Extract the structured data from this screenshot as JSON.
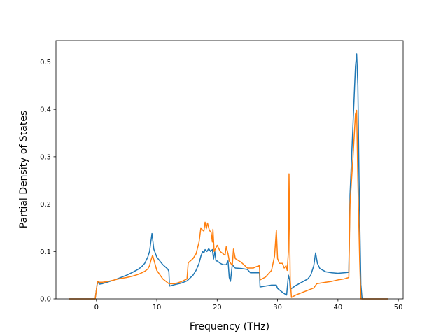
{
  "chart_data": {
    "type": "line",
    "title": "",
    "xlabel": "Frequency (THz)",
    "ylabel": "Partial Density of States",
    "xlim": [
      -6.7,
      50.8
    ],
    "ylim": [
      0.0,
      0.545
    ],
    "xticks": [
      0,
      10,
      20,
      30,
      40,
      50
    ],
    "yticks": [
      0.0,
      0.1,
      0.2,
      0.3,
      0.4,
      0.5
    ],
    "xtick_labels": [
      "0",
      "10",
      "20",
      "30",
      "40",
      "50"
    ],
    "ytick_labels": [
      "0.0",
      "0.1",
      "0.2",
      "0.3",
      "0.4",
      "0.5"
    ],
    "grid": false,
    "legend": null,
    "series": [
      {
        "color": "#1f77b4",
        "x": [
          -4.5,
          -0.2,
          0.1,
          0.3,
          0.5,
          1,
          2,
          3,
          4,
          5,
          6,
          7,
          7.5,
          8,
          8.5,
          8.8,
          9.0,
          9.2,
          9.5,
          10,
          11,
          11.8,
          12.0,
          12.1,
          13,
          14,
          15,
          16,
          16.5,
          17,
          17.3,
          17.6,
          17.8,
          18,
          18.3,
          18.6,
          18.9,
          19.2,
          19.4,
          19.6,
          19.8,
          20.0,
          20.5,
          21,
          21.5,
          21.8,
          22.0,
          22.2,
          22.5,
          23,
          24,
          25,
          25.5,
          26,
          26.5,
          27.0,
          27.1,
          28,
          29,
          29.8,
          30.0,
          31.0,
          31.5,
          31.8,
          32.0,
          32.1,
          33,
          34,
          35,
          35.5,
          36.0,
          36.3,
          36.6,
          37,
          38,
          39,
          40,
          41,
          41.8,
          42.0,
          42.5,
          42.9,
          43.1,
          43.3,
          43.5,
          43.8,
          44.0,
          44.5,
          48.3
        ],
        "y": [
          0.0,
          0.0,
          0.03,
          0.035,
          0.031,
          0.032,
          0.036,
          0.04,
          0.045,
          0.05,
          0.056,
          0.063,
          0.068,
          0.075,
          0.088,
          0.1,
          0.119,
          0.138,
          0.105,
          0.088,
          0.072,
          0.063,
          0.058,
          0.027,
          0.03,
          0.033,
          0.038,
          0.05,
          0.06,
          0.075,
          0.09,
          0.1,
          0.097,
          0.104,
          0.1,
          0.106,
          0.1,
          0.104,
          0.084,
          0.1,
          0.08,
          0.08,
          0.075,
          0.072,
          0.072,
          0.08,
          0.045,
          0.037,
          0.072,
          0.065,
          0.064,
          0.062,
          0.055,
          0.055,
          0.055,
          0.055,
          0.025,
          0.027,
          0.029,
          0.029,
          0.022,
          0.012,
          0.008,
          0.05,
          0.04,
          0.02,
          0.028,
          0.035,
          0.042,
          0.05,
          0.07,
          0.097,
          0.075,
          0.064,
          0.057,
          0.055,
          0.054,
          0.055,
          0.056,
          0.22,
          0.37,
          0.49,
          0.517,
          0.45,
          0.25,
          0.03,
          0.0,
          0.0,
          0.0
        ]
      },
      {
        "color": "#ff7f0e",
        "x": [
          -4.5,
          -0.2,
          0.0,
          0.2,
          0.5,
          1,
          2,
          3,
          4,
          5,
          6,
          7,
          7.5,
          8,
          8.5,
          8.8,
          9.0,
          9.3,
          10,
          11,
          12.0,
          13,
          14,
          15,
          15.2,
          16,
          16.5,
          17,
          17.3,
          17.6,
          17.8,
          18,
          18.2,
          18.4,
          18.7,
          19.0,
          19.2,
          19.3,
          19.5,
          20,
          20.5,
          21,
          21.3,
          21.5,
          21.8,
          22.0,
          22.5,
          22.7,
          23,
          24,
          25,
          26,
          26.5,
          27.0,
          27.1,
          28,
          29,
          29.5,
          29.8,
          30.0,
          30.3,
          30.8,
          31.1,
          31.4,
          31.6,
          31.8,
          31.9,
          32.1,
          32.3,
          33,
          34,
          35,
          36,
          36.5,
          37,
          38,
          39,
          40,
          41,
          41.8,
          42.0,
          42.5,
          42.9,
          43.1,
          43.3,
          43.6,
          43.8,
          44.0,
          48.3
        ],
        "y": [
          0.0,
          0.0,
          0.02,
          0.037,
          0.035,
          0.035,
          0.037,
          0.04,
          0.043,
          0.045,
          0.048,
          0.052,
          0.055,
          0.058,
          0.063,
          0.07,
          0.08,
          0.092,
          0.06,
          0.042,
          0.032,
          0.032,
          0.036,
          0.042,
          0.076,
          0.085,
          0.095,
          0.12,
          0.15,
          0.145,
          0.143,
          0.162,
          0.148,
          0.16,
          0.145,
          0.14,
          0.12,
          0.147,
          0.1,
          0.113,
          0.1,
          0.095,
          0.092,
          0.11,
          0.095,
          0.08,
          0.07,
          0.105,
          0.085,
          0.077,
          0.065,
          0.065,
          0.068,
          0.07,
          0.04,
          0.046,
          0.06,
          0.09,
          0.145,
          0.085,
          0.075,
          0.075,
          0.065,
          0.07,
          0.06,
          0.1,
          0.264,
          0.04,
          0.003,
          0.008,
          0.013,
          0.018,
          0.023,
          0.032,
          0.033,
          0.035,
          0.037,
          0.04,
          0.042,
          0.045,
          0.2,
          0.3,
          0.39,
          0.398,
          0.25,
          0.08,
          0.0,
          0.0,
          0.0
        ]
      }
    ]
  }
}
